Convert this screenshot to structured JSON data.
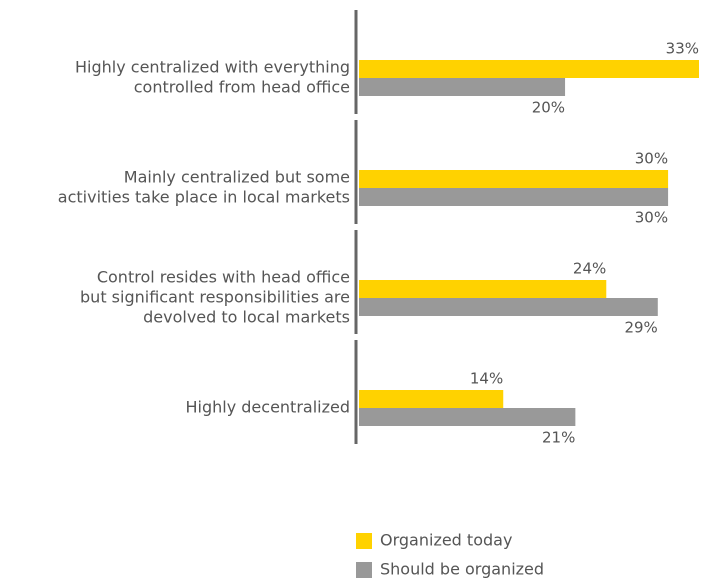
{
  "chart_data": {
    "type": "bar",
    "orientation": "horizontal",
    "categories": [
      [
        "Highly centralized with everything",
        "controlled from head office"
      ],
      [
        "Mainly centralized but some",
        "activities take place in local markets"
      ],
      [
        "Control resides with head office",
        "but significant responsibilities are",
        "devolved to local markets"
      ],
      [
        "Highly decentralized"
      ]
    ],
    "series": [
      {
        "name": "Organized today",
        "color": "#ffd200",
        "values": [
          33,
          30,
          24,
          14
        ],
        "value_labels": [
          "33%",
          "30%",
          "24%",
          "14%"
        ]
      },
      {
        "name": "Should be organized",
        "color": "#999999",
        "values": [
          20,
          30,
          29,
          21
        ],
        "value_labels": [
          "20%",
          "30%",
          "29%",
          "21%"
        ]
      }
    ],
    "xlim": [
      0,
      33
    ]
  }
}
